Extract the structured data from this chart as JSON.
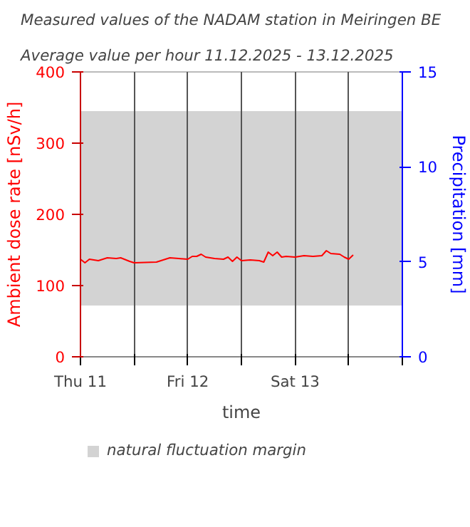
{
  "chart_data": {
    "type": "line",
    "title": "Measured values of the NADAM station in Meiringen BE",
    "subtitle": "Average value per hour 11.12.2025 - 13.12.2025",
    "xlabel": "time",
    "ylabel": "Ambient dose rate [nSv/h]",
    "y2label": "Precipitation [mm]",
    "xlim": [
      "2025-12-11T00:00",
      "2025-12-14T00:00"
    ],
    "xticks": [
      {
        "value": "2025-12-11T00:00",
        "label": "Thu 11"
      },
      {
        "value": "2025-12-11T12:00",
        "label": null
      },
      {
        "value": "2025-12-12T00:00",
        "label": "Fri 12"
      },
      {
        "value": "2025-12-12T12:00",
        "label": null
      },
      {
        "value": "2025-12-13T00:00",
        "label": "Sat 13"
      },
      {
        "value": "2025-12-13T12:00",
        "label": null
      },
      {
        "value": "2025-12-14T00:00",
        "label": null
      }
    ],
    "ylim": [
      0,
      400
    ],
    "yticks": [
      0,
      100,
      200,
      300,
      400
    ],
    "y2lim": [
      0,
      15
    ],
    "y2ticks": [
      0,
      5,
      10,
      15
    ],
    "grid": "x",
    "legend": "bottom left",
    "bands": [
      {
        "axis": "y",
        "from": 72,
        "to": 345,
        "label": "natural fluctuation margin",
        "color": "#d3d3d3"
      }
    ],
    "series": [
      {
        "color": "#ff0000",
        "x": [
          "2025-12-11T00:00",
          "2025-12-11T01:00",
          "2025-12-11T02:00",
          "2025-12-11T04:00",
          "2025-12-11T06:00",
          "2025-12-11T08:00",
          "2025-12-11T09:00",
          "2025-12-11T11:00",
          "2025-12-11T12:00",
          "2025-12-11T17:00",
          "2025-12-11T18:00",
          "2025-12-11T20:00",
          "2025-12-11T22:00",
          "2025-12-12T00:00",
          "2025-12-12T01:00",
          "2025-12-12T02:00",
          "2025-12-12T03:00",
          "2025-12-12T04:00",
          "2025-12-12T06:00",
          "2025-12-12T08:00",
          "2025-12-12T09:00",
          "2025-12-12T10:00",
          "2025-12-12T11:00",
          "2025-12-12T12:00",
          "2025-12-12T14:00",
          "2025-12-12T16:00",
          "2025-12-12T17:00",
          "2025-12-12T18:00",
          "2025-12-12T19:00",
          "2025-12-12T20:00",
          "2025-12-12T21:00",
          "2025-12-12T22:00",
          "2025-12-13T00:00",
          "2025-12-13T02:00",
          "2025-12-13T04:00",
          "2025-12-13T06:00",
          "2025-12-13T07:00",
          "2025-12-13T08:00",
          "2025-12-13T10:00",
          "2025-12-13T11:00",
          "2025-12-13T12:00",
          "2025-12-13T13:00"
        ],
        "values": [
          137,
          132,
          137,
          135,
          139,
          138,
          139,
          134,
          132,
          133,
          135,
          139,
          138,
          137,
          141,
          141,
          144,
          140,
          138,
          137,
          140,
          134,
          140,
          135,
          136,
          135,
          133,
          147,
          142,
          147,
          140,
          141,
          140,
          142,
          141,
          142,
          149,
          145,
          144,
          140,
          137,
          143
        ]
      }
    ]
  }
}
